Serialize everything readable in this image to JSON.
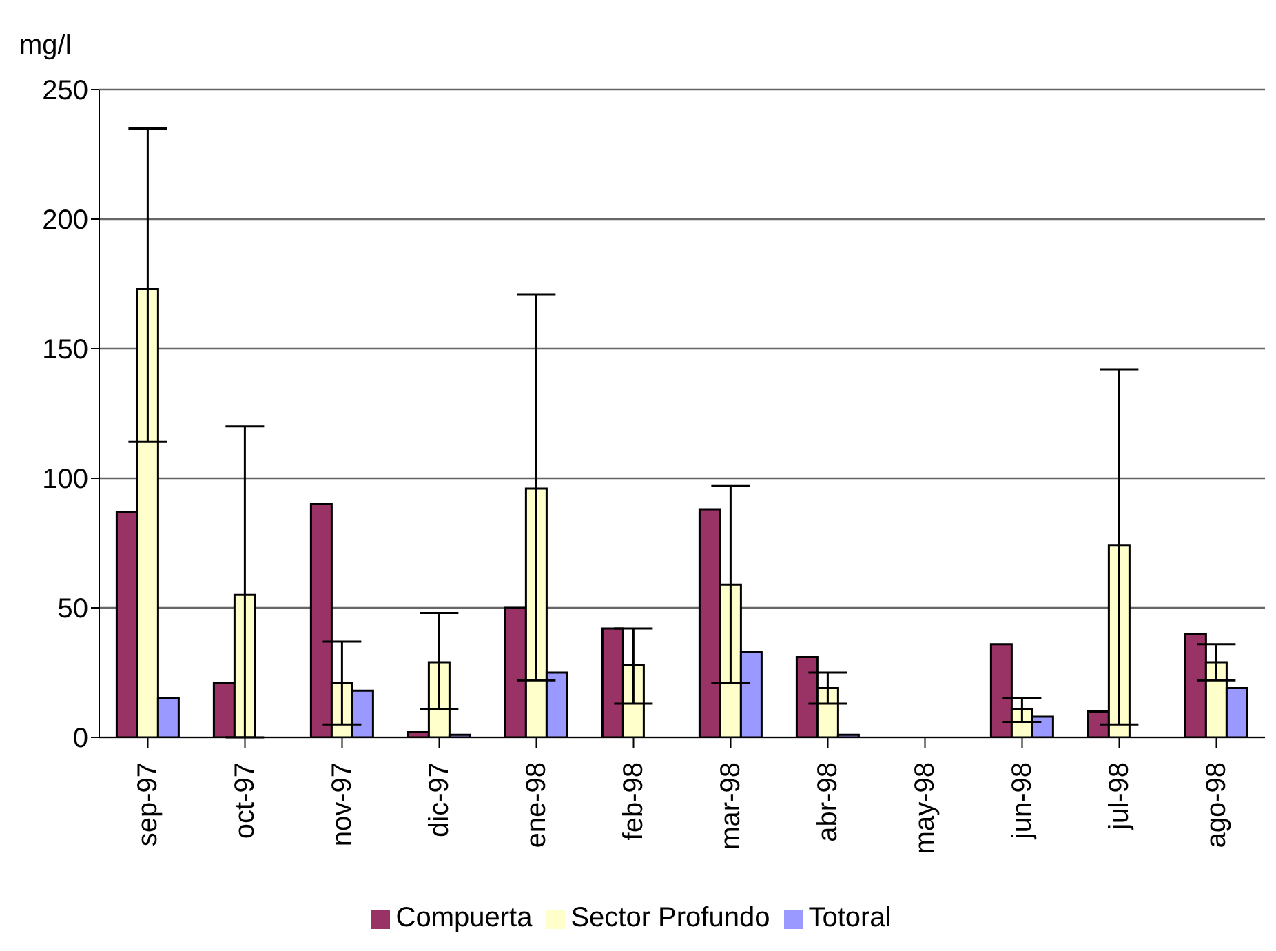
{
  "chart_data": {
    "type": "bar",
    "ylabel": "mg/l",
    "categories": [
      "sep-97",
      "oct-97",
      "nov-97",
      "dic-97",
      "ene-98",
      "feb-98",
      "mar-98",
      "abr-98",
      "may-98",
      "jun-98",
      "jul-98",
      "ago-98"
    ],
    "series": [
      {
        "name": "Compuerta",
        "color": "#993366",
        "values": [
          87,
          21,
          90,
          2,
          50,
          42,
          88,
          31,
          null,
          36,
          10,
          40
        ]
      },
      {
        "name": "Sector Profundo",
        "color": "#ffffcc",
        "values": [
          173,
          55,
          21,
          29,
          96,
          28,
          59,
          19,
          null,
          11,
          74,
          29
        ],
        "errors": [
          [
            114,
            235
          ],
          [
            0,
            120
          ],
          [
            5,
            37
          ],
          [
            11,
            48
          ],
          [
            22,
            171
          ],
          [
            13,
            42
          ],
          [
            21,
            97
          ],
          [
            13,
            25
          ],
          null,
          [
            6,
            15
          ],
          [
            5,
            142
          ],
          [
            22,
            36
          ]
        ]
      },
      {
        "name": "Totoral",
        "color": "#9999ff",
        "values": [
          15,
          null,
          18,
          1,
          25,
          null,
          33,
          1,
          null,
          8,
          null,
          19
        ]
      }
    ],
    "ylim": [
      0,
      250
    ],
    "yticks": [
      0,
      50,
      100,
      150,
      200,
      250
    ],
    "grid": "y",
    "legend": "bottom"
  }
}
